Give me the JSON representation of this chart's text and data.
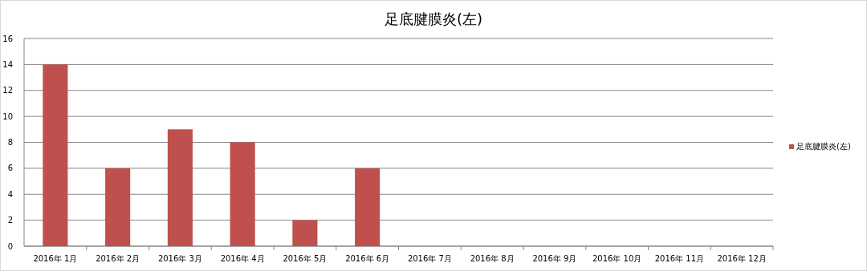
{
  "chart_data": {
    "type": "bar",
    "title": "足底腱膜炎(左)",
    "categories": [
      "2016年 1月",
      "2016年 2月",
      "2016年 3月",
      "2016年 4月",
      "2016年 5月",
      "2016年 6月",
      "2016年 7月",
      "2016年 8月",
      "2016年 9月",
      "2016年 10月",
      "2016年 11月",
      "2016年 12月"
    ],
    "series": [
      {
        "name": "足底腱膜炎(左)",
        "color": "#c0504d",
        "values": [
          14,
          6,
          9,
          8,
          2,
          6,
          null,
          null,
          null,
          null,
          null,
          null
        ]
      }
    ],
    "ylim": [
      0,
      16
    ],
    "yticks": [
      0,
      2,
      4,
      6,
      8,
      10,
      12,
      14,
      16
    ],
    "grid": "y",
    "legend": "right"
  }
}
